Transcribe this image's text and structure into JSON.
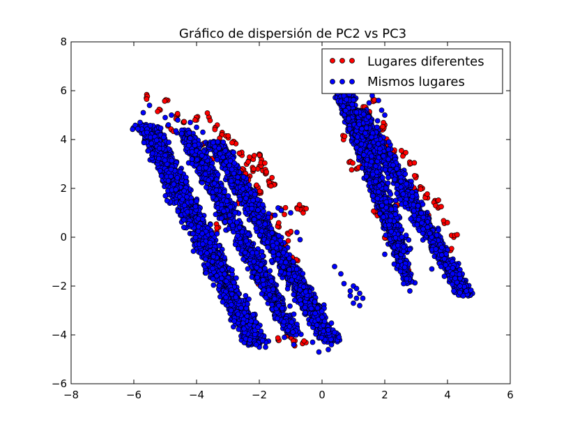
{
  "chart_data": {
    "type": "scatter",
    "title": "Gráfico de dispersión de PC2 vs PC3",
    "xlabel": "",
    "ylabel": "",
    "xlim": [
      -8,
      6
    ],
    "ylim": [
      -6,
      8
    ],
    "x_ticks": [
      -8,
      -6,
      -4,
      -2,
      0,
      2,
      4,
      6
    ],
    "y_ticks": [
      -6,
      -4,
      -2,
      0,
      2,
      4,
      6,
      8
    ],
    "x_tick_labels": [
      "−8",
      "−6",
      "−4",
      "−2",
      "0",
      "2",
      "4",
      "6"
    ],
    "y_tick_labels": [
      "−6",
      "−4",
      "−2",
      "0",
      "2",
      "4",
      "6",
      "8"
    ],
    "grid": false,
    "legend_position": "top-right",
    "series": [
      {
        "name": "Lugares diferentes",
        "color": "#ff0000",
        "points": [
          [
            -5.6,
            5.7
          ],
          [
            -5.2,
            5.2
          ],
          [
            -5.0,
            5.6
          ],
          [
            -4.6,
            5.0
          ],
          [
            -4.4,
            4.7
          ],
          [
            -4.0,
            4.8
          ],
          [
            -3.6,
            4.9
          ],
          [
            -3.4,
            4.5
          ],
          [
            -3.2,
            4.2
          ],
          [
            -3.0,
            4.1
          ],
          [
            -2.8,
            3.9
          ],
          [
            -2.6,
            3.4
          ],
          [
            -2.4,
            3.0
          ],
          [
            -2.2,
            3.2
          ],
          [
            -2.0,
            2.9
          ],
          [
            -2.0,
            3.4
          ],
          [
            -1.9,
            3.0
          ],
          [
            -1.7,
            2.3
          ],
          [
            -1.6,
            2.2
          ],
          [
            -2.6,
            2.6
          ],
          [
            -2.8,
            2.8
          ],
          [
            -2.3,
            2.5
          ],
          [
            -2.5,
            2.7
          ],
          [
            -2.1,
            2.1
          ],
          [
            -3.8,
            3.8
          ],
          [
            -3.3,
            3.6
          ],
          [
            -3.0,
            3.3
          ],
          [
            -2.9,
            2.9
          ],
          [
            -4.8,
            4.4
          ],
          [
            -4.2,
            4.2
          ],
          [
            -2.2,
            2.7
          ],
          [
            -2.4,
            2.0
          ],
          [
            -2.7,
            2.2
          ],
          [
            -2.0,
            1.8
          ],
          [
            -1.8,
            2.6
          ],
          [
            -3.5,
            3.2
          ],
          [
            -0.8,
            1.2
          ],
          [
            -0.6,
            1.2
          ],
          [
            -1.3,
            1.1
          ],
          [
            -1.6,
            0.9
          ],
          [
            -1.4,
            0.5
          ],
          [
            -1.0,
            0.2
          ],
          [
            -2.6,
            1.4
          ],
          [
            -3.0,
            1.0
          ],
          [
            -1.8,
            0.1
          ],
          [
            -1.5,
            -0.5
          ],
          [
            -2.0,
            -1.8
          ],
          [
            -1.8,
            -2.0
          ],
          [
            -3.3,
            0.4
          ],
          [
            -2.9,
            0.7
          ],
          [
            -1.2,
            -0.3
          ],
          [
            -0.9,
            -0.9
          ],
          [
            -1.0,
            -4.1
          ],
          [
            -0.9,
            -4.3
          ],
          [
            -0.6,
            -4.3
          ],
          [
            -1.4,
            -4.2
          ],
          [
            0.4,
            7.3
          ],
          [
            0.5,
            7.2
          ],
          [
            0.6,
            6.9
          ],
          [
            0.7,
            6.3
          ],
          [
            0.8,
            5.7
          ],
          [
            1.0,
            4.9
          ],
          [
            1.2,
            4.6
          ],
          [
            1.4,
            5.3
          ],
          [
            1.5,
            5.1
          ],
          [
            1.7,
            5.6
          ],
          [
            1.6,
            4.5
          ],
          [
            1.9,
            4.4
          ],
          [
            2.1,
            3.9
          ],
          [
            2.3,
            3.5
          ],
          [
            2.0,
            4.6
          ],
          [
            2.6,
            3.4
          ],
          [
            2.8,
            3.0
          ],
          [
            3.0,
            2.5
          ],
          [
            3.2,
            2.0
          ],
          [
            3.3,
            1.7
          ],
          [
            3.6,
            1.5
          ],
          [
            3.7,
            1.2
          ],
          [
            3.9,
            0.6
          ],
          [
            1.8,
            3.5
          ],
          [
            1.3,
            2.9
          ],
          [
            1.1,
            2.8
          ],
          [
            0.9,
            3.1
          ],
          [
            0.7,
            4.1
          ],
          [
            1.2,
            3.7
          ],
          [
            0.5,
            6.7
          ],
          [
            2.4,
            1.3
          ],
          [
            3.0,
            1.9
          ],
          [
            2.5,
            2.4
          ],
          [
            1.7,
            1.0
          ],
          [
            2.2,
            0.6
          ],
          [
            2.0,
            0.0
          ],
          [
            3.4,
            0.9
          ],
          [
            4.2,
            0.0
          ],
          [
            4.1,
            -0.5
          ],
          [
            2.7,
            -1.2
          ]
        ]
      },
      {
        "name": "Mismos lugares",
        "color": "#0000ff",
        "segments": [
          {
            "x1": -5.6,
            "y1": 4.6,
            "x2": -2.1,
            "y2": -4.4,
            "width": 1.1,
            "n": 1700
          },
          {
            "x1": -4.4,
            "y1": 4.4,
            "x2": -0.9,
            "y2": -4.0,
            "width": 0.9,
            "n": 1000
          },
          {
            "x1": -3.4,
            "y1": 3.9,
            "x2": 0.3,
            "y2": -4.3,
            "width": 0.9,
            "n": 1500
          },
          {
            "x1": 0.3,
            "y1": 6.9,
            "x2": 2.8,
            "y2": -1.9,
            "width": 0.55,
            "n": 700
          },
          {
            "x1": 0.7,
            "y1": 6.0,
            "x2": 2.6,
            "y2": -0.6,
            "width": 0.8,
            "n": 700
          },
          {
            "x1": 1.2,
            "y1": 5.2,
            "x2": 4.6,
            "y2": -2.4,
            "width": 0.8,
            "n": 1100
          }
        ],
        "points": [
          [
            -5.5,
            5.4
          ],
          [
            -5.7,
            5.1
          ],
          [
            -5.8,
            4.7
          ],
          [
            -5.0,
            4.9
          ],
          [
            -4.8,
            5.0
          ],
          [
            -4.6,
            4.8
          ],
          [
            -4.2,
            4.7
          ],
          [
            -4.0,
            4.5
          ],
          [
            -3.8,
            4.3
          ],
          [
            -4.9,
            4.6
          ],
          [
            -1.4,
            1.2
          ],
          [
            -1.3,
            1.1
          ],
          [
            -1.5,
            0.9
          ],
          [
            -1.0,
            1.0
          ],
          [
            -0.8,
            0.2
          ],
          [
            -0.7,
            -0.1
          ],
          [
            0.4,
            -1.2
          ],
          [
            0.6,
            -1.5
          ],
          [
            0.7,
            -1.9
          ],
          [
            0.9,
            -2.2
          ],
          [
            1.0,
            -2.0
          ],
          [
            1.1,
            -2.1
          ],
          [
            1.2,
            -2.3
          ],
          [
            1.3,
            -2.5
          ],
          [
            1.1,
            -2.5
          ],
          [
            1.0,
            -2.7
          ],
          [
            1.2,
            -2.8
          ],
          [
            0.9,
            -2.4
          ],
          [
            0.2,
            -4.6
          ],
          [
            0.3,
            -4.4
          ],
          [
            -0.1,
            -4.7
          ],
          [
            -0.3,
            -4.3
          ],
          [
            -0.9,
            -4.4
          ],
          [
            -1.2,
            -4.1
          ],
          [
            0.2,
            -3.8
          ],
          [
            0.4,
            -3.9
          ],
          [
            -2.0,
            -4.5
          ],
          [
            -2.1,
            -4.4
          ],
          [
            -1.8,
            -4.5
          ],
          [
            -2.3,
            -4.2
          ],
          [
            4.5,
            -2.4
          ],
          [
            4.6,
            -2.2
          ],
          [
            4.4,
            -2.0
          ],
          [
            4.2,
            -2.2
          ],
          [
            3.9,
            -1.6
          ],
          [
            3.5,
            -1.3
          ],
          [
            2.8,
            -2.2
          ],
          [
            2.7,
            -1.7
          ],
          [
            2.6,
            -1.9
          ],
          [
            2.5,
            -1.4
          ],
          [
            2.3,
            -1.1
          ],
          [
            2.0,
            -0.7
          ],
          [
            0.6,
            6.8
          ],
          [
            0.7,
            6.6
          ],
          [
            0.4,
            6.9
          ],
          [
            0.5,
            6.5
          ],
          [
            0.9,
            6.6
          ],
          [
            1.1,
            6.3
          ],
          [
            1.4,
            6.1
          ],
          [
            1.6,
            5.8
          ],
          [
            1.8,
            5.6
          ],
          [
            1.5,
            5.5
          ],
          [
            1.9,
            5.2
          ],
          [
            2.0,
            5.0
          ]
        ]
      }
    ]
  }
}
